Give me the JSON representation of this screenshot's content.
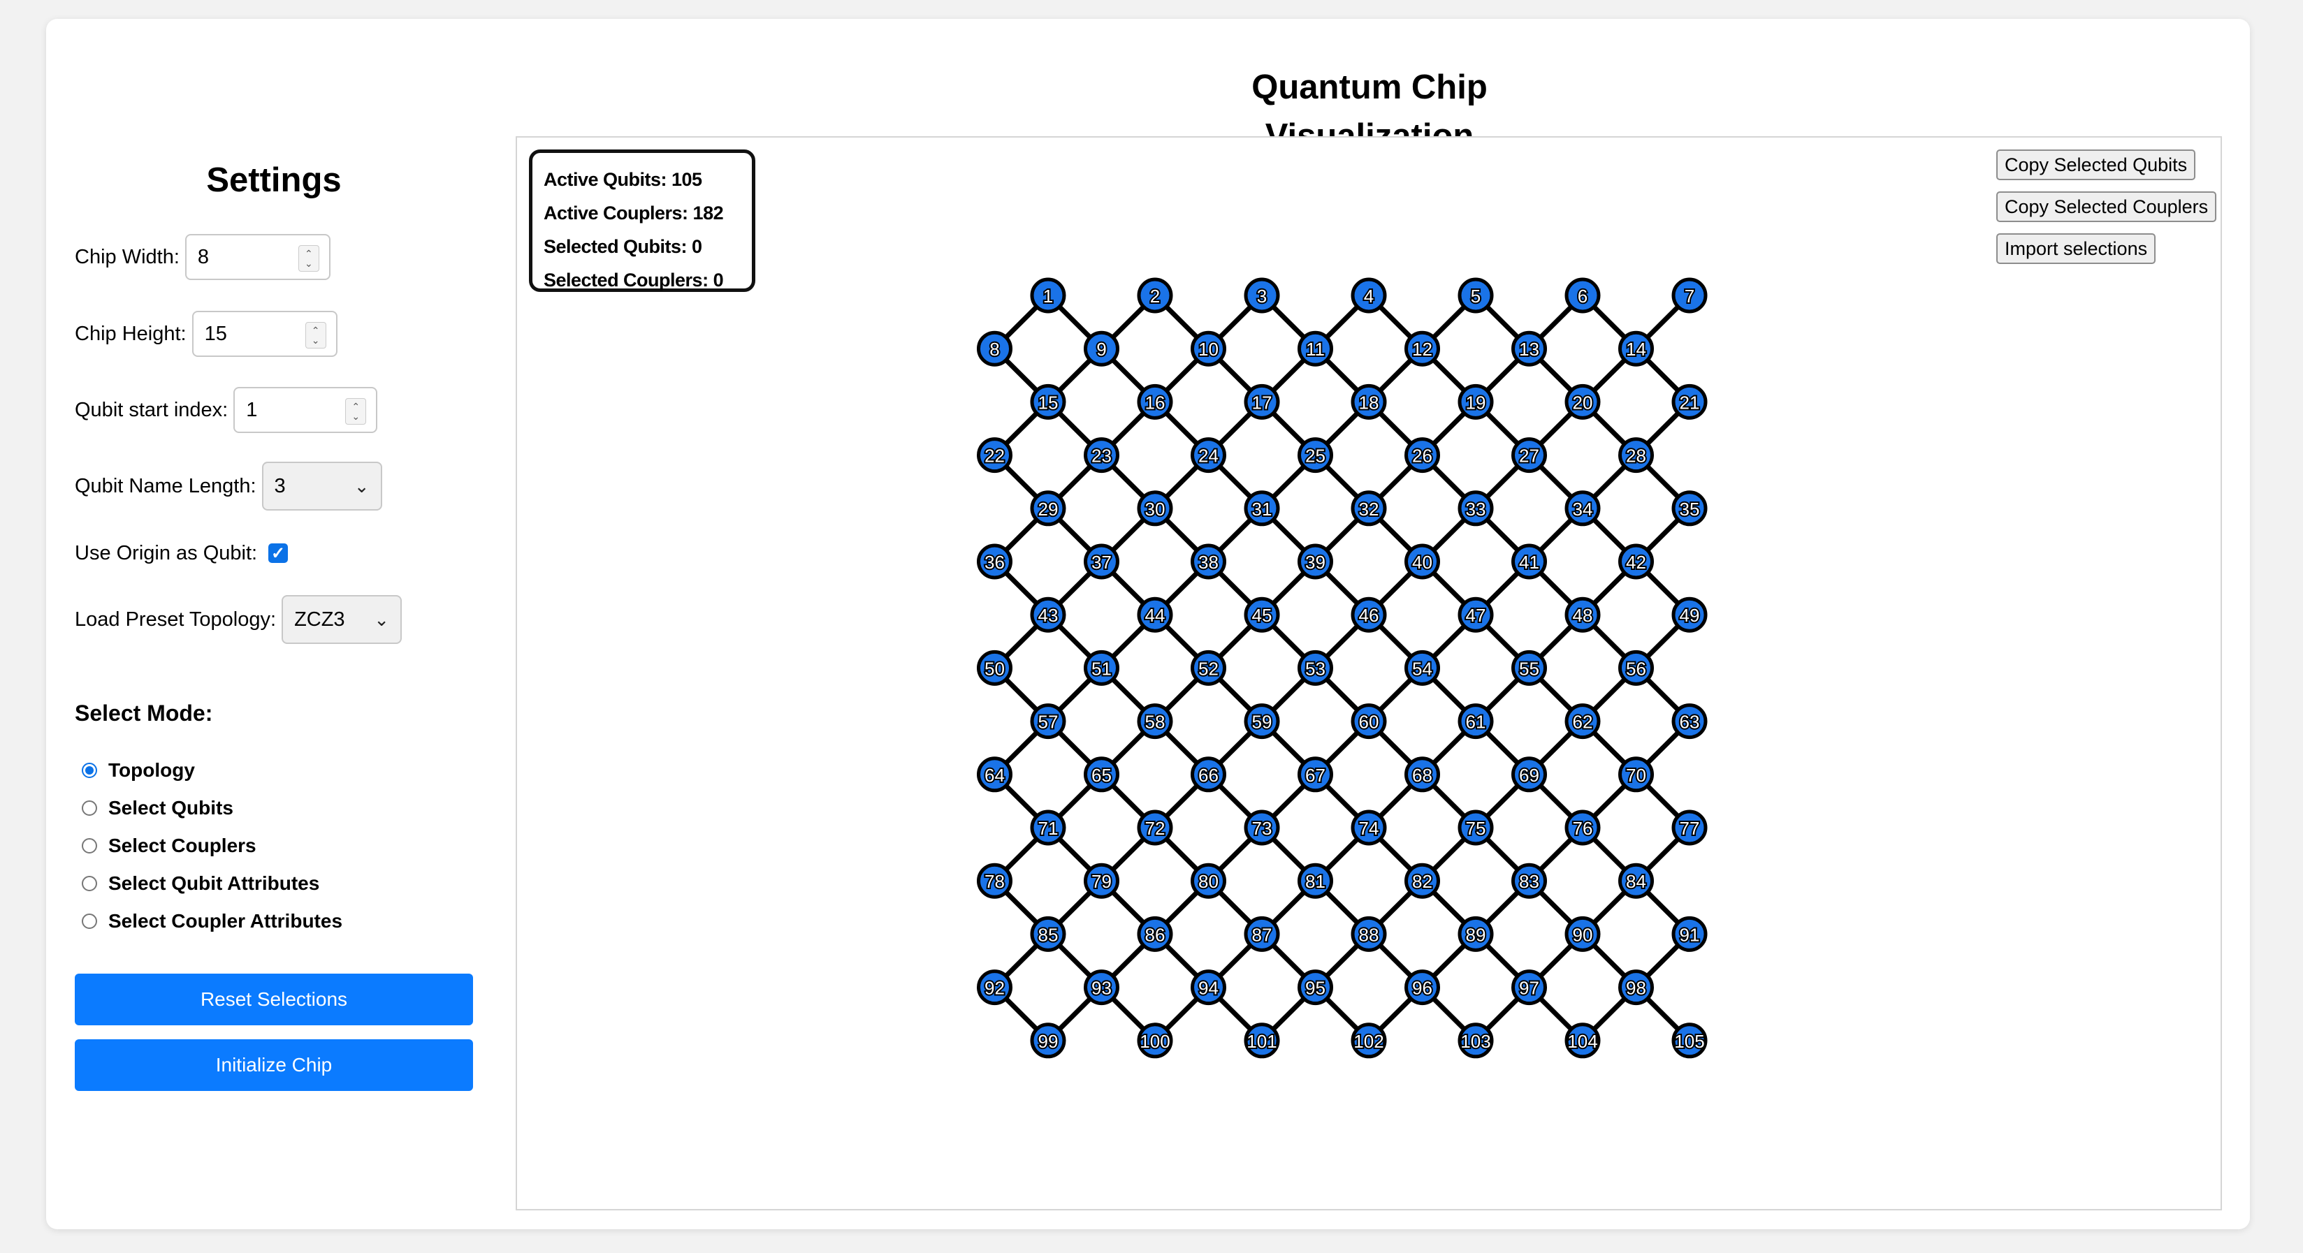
{
  "page_title": "Quantum Chip Visualization",
  "settings": {
    "title": "Settings",
    "chip_width_label": "Chip Width:",
    "chip_width_value": "8",
    "chip_height_label": "Chip Height:",
    "chip_height_value": "15",
    "qubit_start_label": "Qubit start index:",
    "qubit_start_value": "1",
    "name_length_label": "Qubit Name Length:",
    "name_length_value": "3",
    "origin_label": "Use Origin as Qubit:",
    "origin_checked": true,
    "preset_label": "Load Preset Topology:",
    "preset_value": "ZCZ3"
  },
  "select_mode": {
    "title": "Select Mode:",
    "options": [
      {
        "label": "Topology",
        "selected": true
      },
      {
        "label": "Select Qubits",
        "selected": false
      },
      {
        "label": "Select Couplers",
        "selected": false
      },
      {
        "label": "Select Qubit Attributes",
        "selected": false
      },
      {
        "label": "Select Coupler Attributes",
        "selected": false
      }
    ]
  },
  "buttons": {
    "reset": "Reset Selections",
    "initialize": "Initialize Chip",
    "copy_qubits": "Copy Selected Qubits",
    "copy_couplers": "Copy Selected Couplers",
    "import": "Import selections"
  },
  "stats": {
    "active_qubits": "Active Qubits: 105",
    "active_couplers": "Active Couplers: 182",
    "selected_qubits": "Selected Qubits: 0",
    "selected_couplers": "Selected Couplers: 0"
  },
  "chip": {
    "columns": 7,
    "rows": 15,
    "qubit_color": "#1a73e8",
    "coupler_color": "#000000"
  },
  "colors": {
    "accent": "#0b7bff"
  }
}
